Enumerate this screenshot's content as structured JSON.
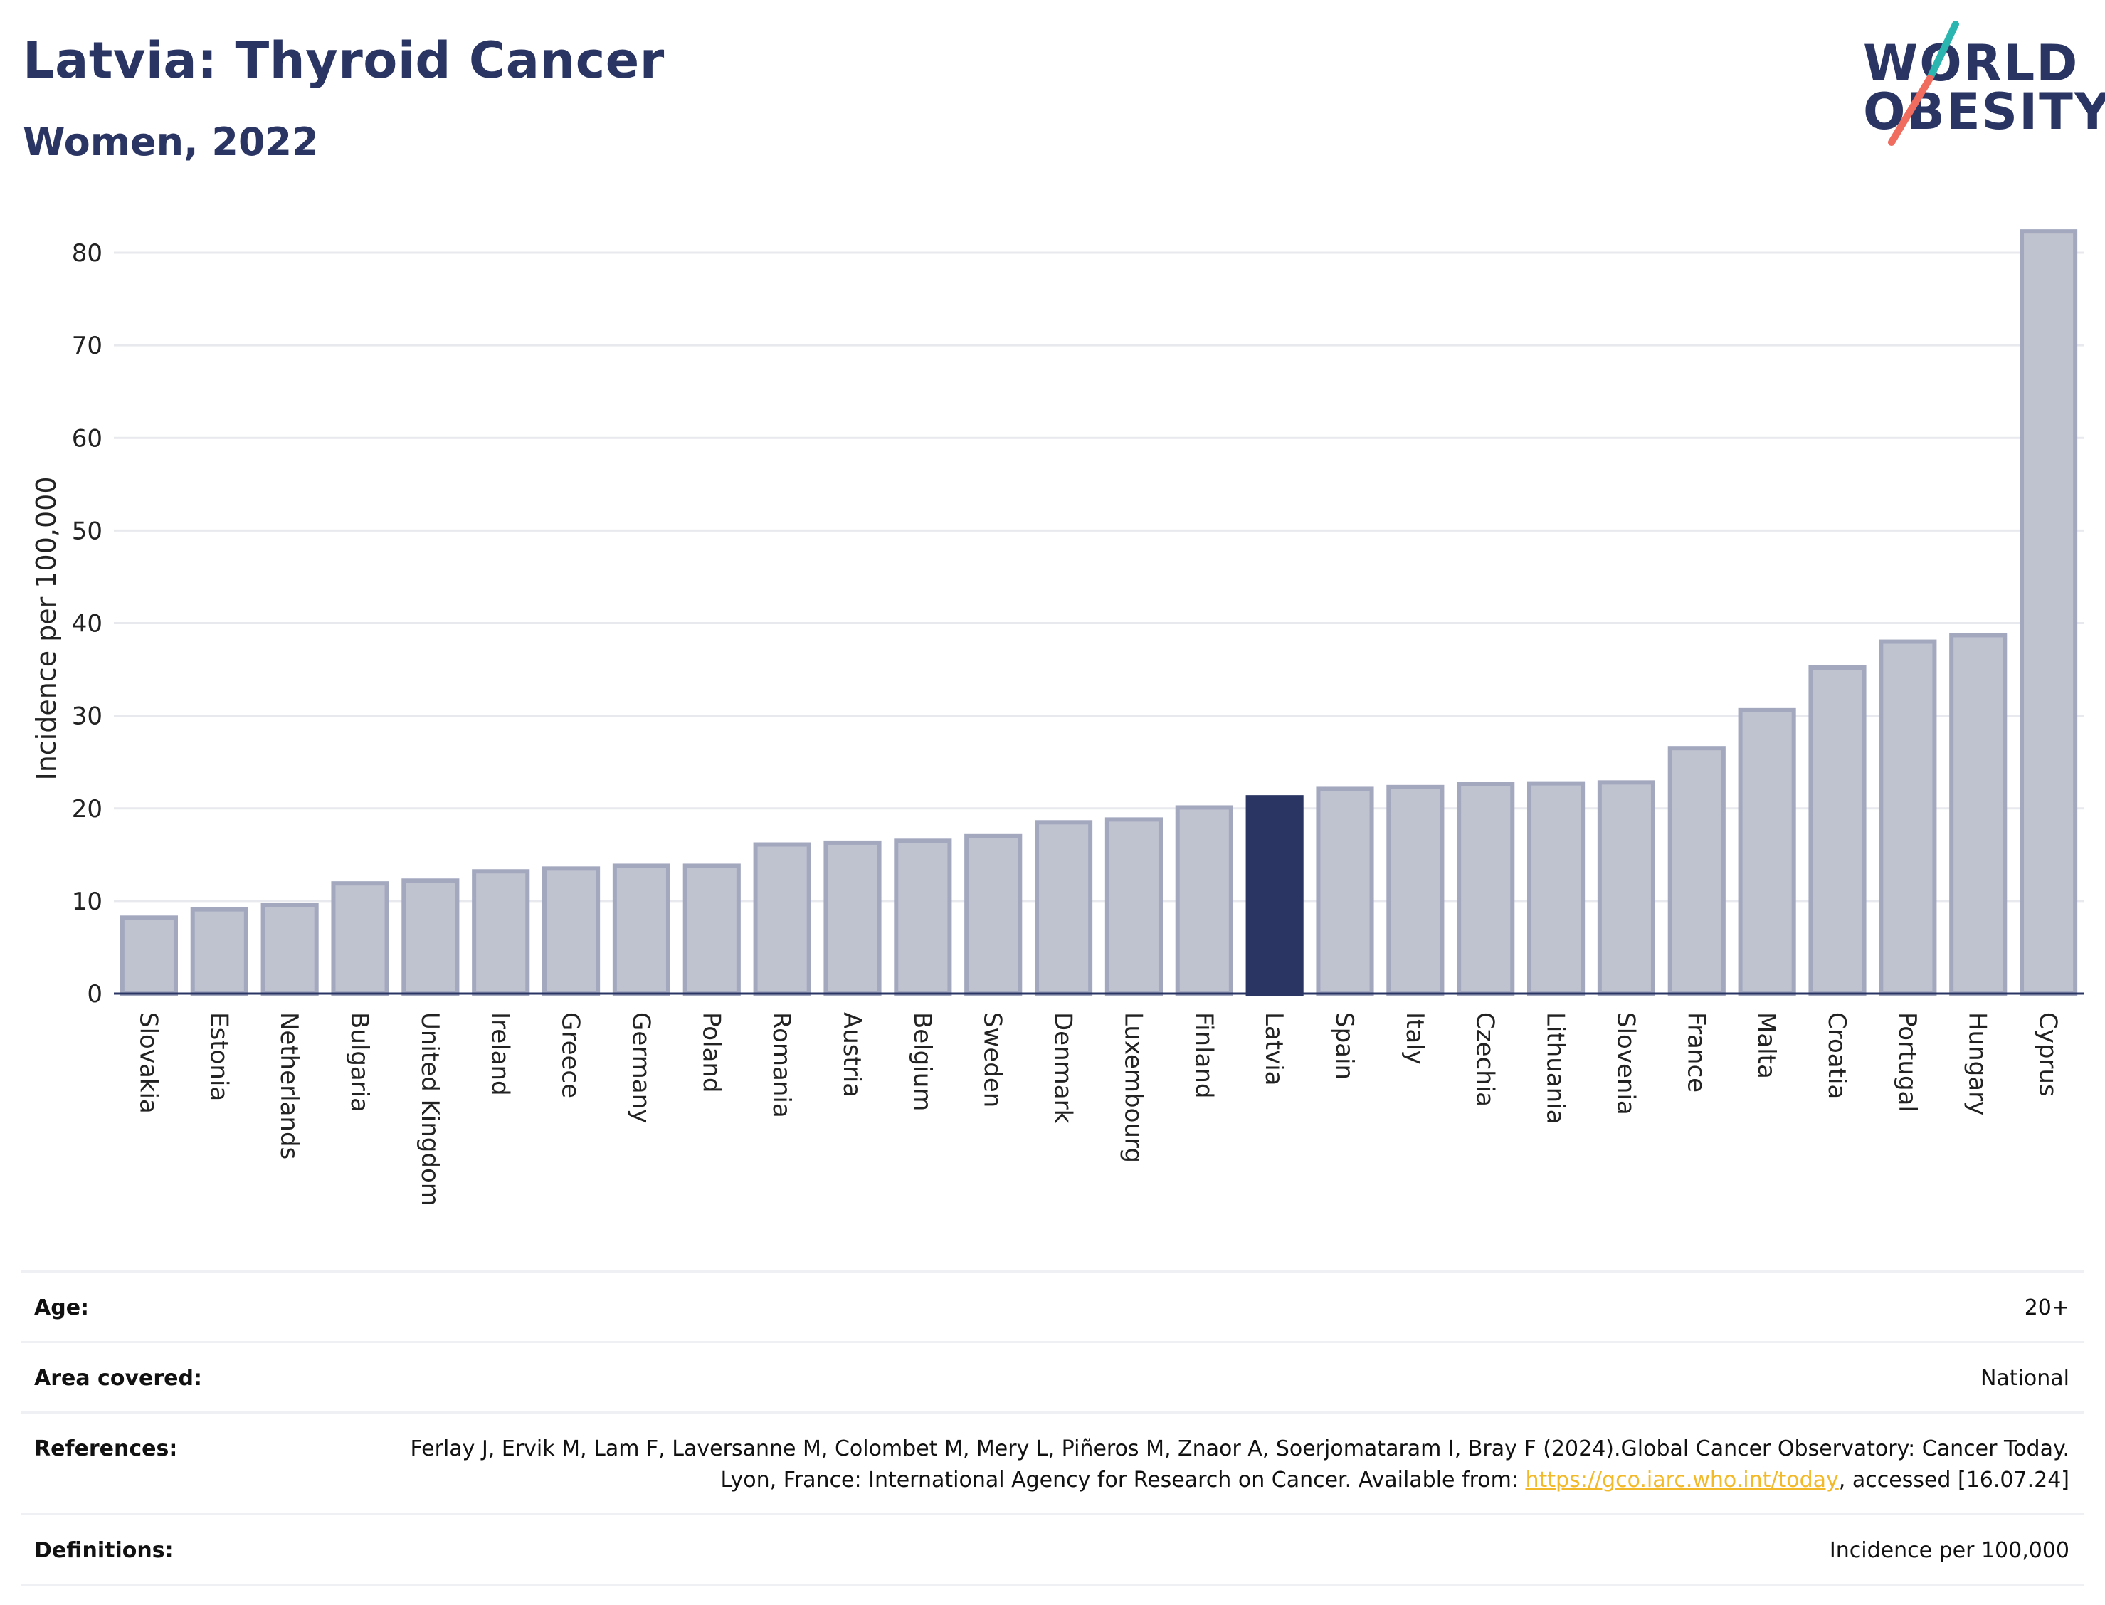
{
  "header": {
    "title": "Latvia: Thyroid Cancer",
    "subtitle": "Women, 2022"
  },
  "logo": {
    "line1": "WORLD",
    "line2": "OBESITY",
    "colors": {
      "text": "#2a3563",
      "slash_top": "#2bb5b0",
      "slash_bottom": "#ef6c5f"
    }
  },
  "chart_data": {
    "type": "bar",
    "title": "Latvia: Thyroid Cancer",
    "subtitle": "Women, 2022",
    "xlabel": "",
    "ylabel": "Incidence per 100,000",
    "ylim": [
      0,
      85
    ],
    "yticks": [
      0,
      10,
      20,
      30,
      40,
      50,
      60,
      70,
      80
    ],
    "grid": true,
    "highlight": "Latvia",
    "colors": {
      "bar": "#bfc2cf",
      "bar_border": "#a3a8bf",
      "highlight": "#2a3563",
      "grid": "#e8e9ee",
      "axis": "#2a3563"
    },
    "categories": [
      "Slovakia",
      "Estonia",
      "Netherlands",
      "Bulgaria",
      "United Kingdom",
      "Ireland",
      "Greece",
      "Germany",
      "Poland",
      "Romania",
      "Austria",
      "Belgium",
      "Sweden",
      "Denmark",
      "Luxembourg",
      "Finland",
      "Latvia",
      "Spain",
      "Italy",
      "Czechia",
      "Lithuania",
      "Slovenia",
      "France",
      "Malta",
      "Croatia",
      "Portugal",
      "Hungary",
      "Cyprus"
    ],
    "values": [
      8.2,
      9.1,
      9.6,
      11.9,
      12.2,
      13.2,
      13.5,
      13.8,
      13.8,
      16.1,
      16.3,
      16.5,
      17.0,
      18.5,
      18.8,
      20.1,
      21.2,
      22.1,
      22.3,
      22.6,
      22.7,
      22.8,
      26.5,
      30.6,
      35.2,
      38.0,
      38.7,
      82.3
    ]
  },
  "info": {
    "age_label": "Age:",
    "age_value": "20+",
    "area_label": "Area covered:",
    "area_value": "National",
    "references_label": "References:",
    "references_text": "Ferlay J, Ervik M, Lam F, Laversanne M, Colombet M, Mery L, Piñeros M, Znaor A, Soerjomataram I, Bray F (2024).Global Cancer Observatory: Cancer Today. Lyon, France: International Agency for Research on Cancer. Available from: ",
    "references_link": "https://gco.iarc.who.int/today",
    "references_tail": ", accessed [16.07.24]",
    "definitions_label": "Definitions:",
    "definitions_value": "Incidence per 100,000"
  }
}
